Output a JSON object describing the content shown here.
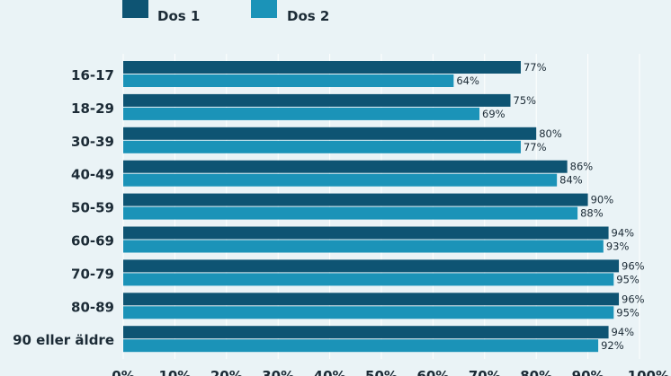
{
  "chart_data": {
    "type": "bar",
    "orientation": "horizontal",
    "categories": [
      "16-17",
      "18-29",
      "30-39",
      "40-49",
      "50-59",
      "60-69",
      "70-79",
      "80-89",
      "90 eller äldre"
    ],
    "series": [
      {
        "name": "Dos 1",
        "color": "#0e5473",
        "values": [
          77,
          75,
          80,
          86,
          90,
          94,
          96,
          96,
          94
        ],
        "labels": [
          "77%",
          "75%",
          "80%",
          "86%",
          "90%",
          "94%",
          "96%",
          "96%",
          "94%"
        ]
      },
      {
        "name": "Dos 2",
        "color": "#1b93b8",
        "values": [
          64,
          69,
          77,
          84,
          88,
          93,
          95,
          95,
          92
        ],
        "labels": [
          "64%",
          "69%",
          "77%",
          "84%",
          "88%",
          "93%",
          "95%",
          "95%",
          "92%"
        ]
      }
    ],
    "x_ticks": [
      "0%",
      "10%",
      "20%",
      "30%",
      "40%",
      "50%",
      "60%",
      "70%",
      "80%",
      "90%",
      "100%"
    ],
    "xlim": [
      0,
      100
    ],
    "legend_position": "top-left",
    "grid": true
  }
}
